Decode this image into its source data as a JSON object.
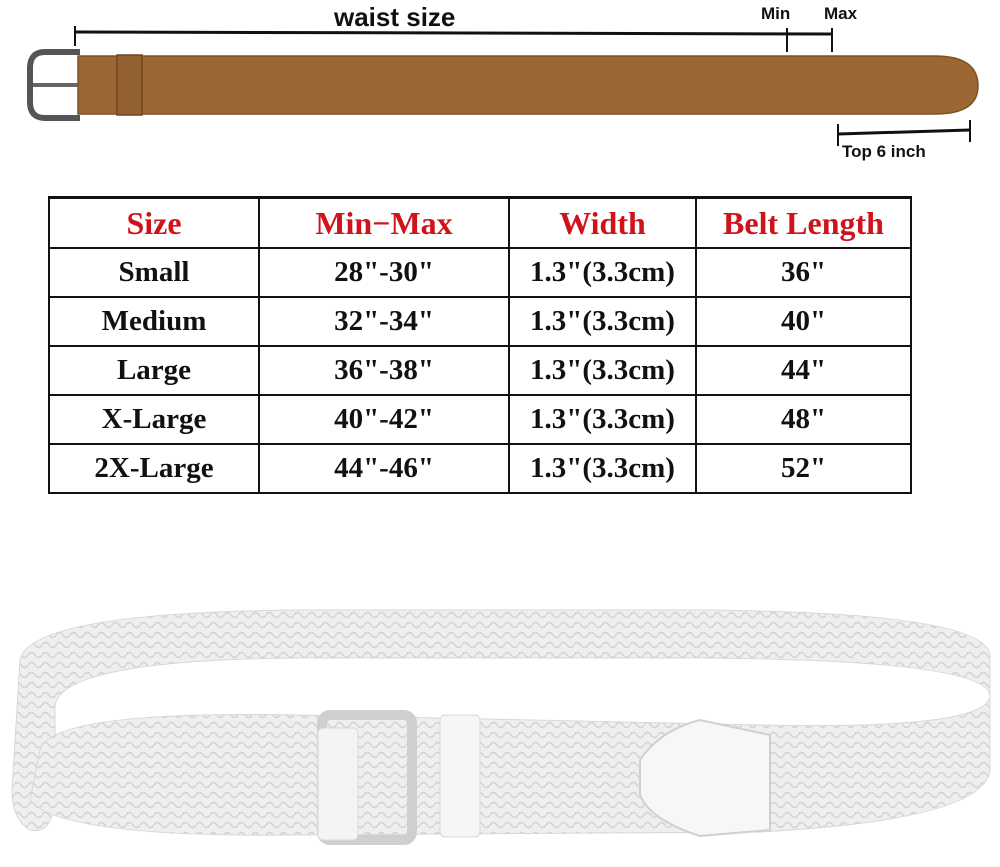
{
  "diagram": {
    "waist_label": "waist size",
    "min_label": "Min",
    "max_label": "Max",
    "tip_label": "Top 6 inch",
    "belt_color": "#9b6733",
    "buckle_color": "#555555"
  },
  "table": {
    "header_color": "#d0131b",
    "headers": [
      "Size",
      "Min−Max",
      "Width",
      "Belt Length"
    ],
    "rows": [
      [
        "Small",
        "28\"-30\"",
        "1.3\"(3.3cm)",
        "36\""
      ],
      [
        "Medium",
        "32\"-34\"",
        "1.3\"(3.3cm)",
        "40\""
      ],
      [
        "Large",
        "36\"-38\"",
        "1.3\"(3.3cm)",
        "44\""
      ],
      [
        "X-Large",
        "40\"-42\"",
        "1.3\"(3.3cm)",
        "48\""
      ],
      [
        "2X-Large",
        "44\"-46\"",
        "1.3\"(3.3cm)",
        "52\""
      ]
    ]
  },
  "photo": {
    "belt_color": "#ececec",
    "buckle_color": "#c9c9c9"
  }
}
